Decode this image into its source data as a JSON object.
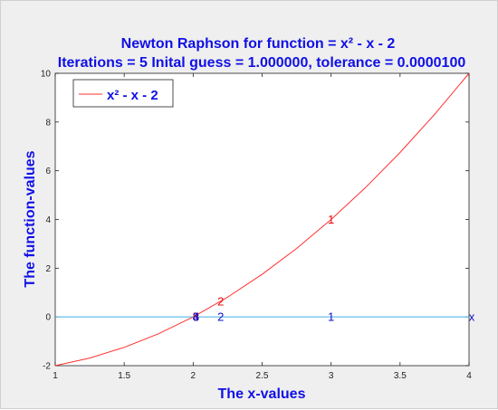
{
  "chart_data": {
    "type": "line",
    "title": [
      "Newton Raphson for function = x² - x - 2",
      "Iterations = 5 Inital guess = 1.000000, tolerance =  0.0000100"
    ],
    "xlabel": "The x-values",
    "ylabel": "The function-values",
    "xlim": [
      1,
      4
    ],
    "ylim": [
      -2,
      10
    ],
    "xticks": [
      "1",
      "1.5",
      "2",
      "2.5",
      "3",
      "3.5",
      "4"
    ],
    "yticks": [
      "-2",
      "0",
      "2",
      "4",
      "6",
      "8",
      "10"
    ],
    "grid": false,
    "legend_position": "top-left",
    "series": [
      {
        "name": "x² - x - 2",
        "color": "#ff3030",
        "x": [
          1,
          1.25,
          1.5,
          1.75,
          2,
          2.25,
          2.5,
          2.75,
          3,
          3.25,
          3.5,
          3.75,
          4
        ],
        "y": [
          -2,
          -1.6875,
          -1.25,
          -0.6875,
          0,
          0.8125,
          1.75,
          2.8125,
          4,
          5.3125,
          6.75,
          8.3125,
          10
        ]
      },
      {
        "color": "#40b0e0",
        "x": [
          1,
          4
        ],
        "y": [
          0,
          0
        ]
      }
    ],
    "annotations_on_curve": [
      {
        "text": "1",
        "x": 3.0,
        "y": 4.0
      },
      {
        "text": "2",
        "x": 2.2,
        "y": 0.64
      },
      {
        "text": "3",
        "x": 2.02,
        "y": 0.0
      },
      {
        "text": "4",
        "x": 2.02,
        "y": 0.0
      },
      {
        "text": "5",
        "x": 2.02,
        "y": 0.0
      }
    ],
    "annotations_on_axis": [
      {
        "text": "x",
        "x": 4.0,
        "y": 0
      },
      {
        "text": "1",
        "x": 3.0,
        "y": 0
      },
      {
        "text": "2",
        "x": 2.2,
        "y": 0
      },
      {
        "text": "3",
        "x": 2.02,
        "y": 0
      },
      {
        "text": "4",
        "x": 2.02,
        "y": 0
      }
    ]
  }
}
